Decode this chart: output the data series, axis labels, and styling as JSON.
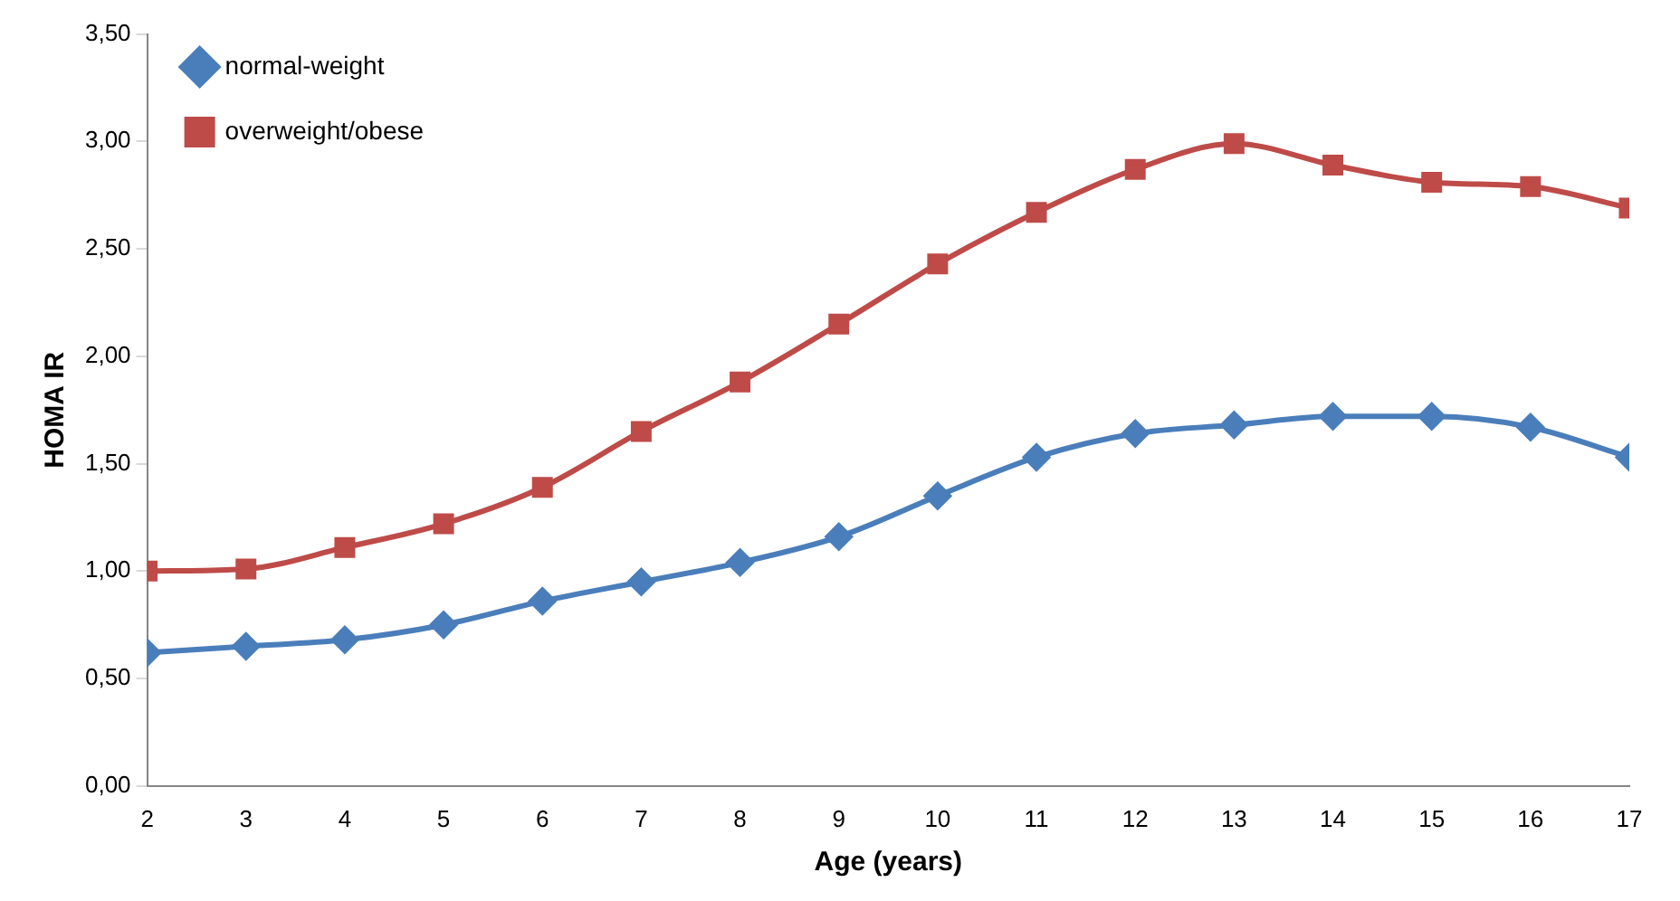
{
  "chart_data": {
    "type": "line",
    "xlabel": "Age (years)",
    "ylabel": "HOMA IR",
    "x": [
      2,
      3,
      4,
      5,
      6,
      7,
      8,
      9,
      10,
      11,
      12,
      13,
      14,
      15,
      16,
      17
    ],
    "series": [
      {
        "name": "normal-weight",
        "color": "#4a7ebb",
        "marker": "diamond",
        "values": [
          0.62,
          0.65,
          0.68,
          0.75,
          0.86,
          0.95,
          1.04,
          1.16,
          1.35,
          1.53,
          1.64,
          1.68,
          1.72,
          1.72,
          1.67,
          1.53
        ]
      },
      {
        "name": "overweight/obese",
        "color": "#be4b48",
        "marker": "square",
        "values": [
          1.0,
          1.01,
          1.11,
          1.22,
          1.39,
          1.65,
          1.88,
          2.15,
          2.43,
          2.67,
          2.87,
          2.99,
          2.89,
          2.81,
          2.79,
          2.69
        ]
      }
    ],
    "xlim": [
      2,
      17
    ],
    "xticks": [
      2,
      3,
      4,
      5,
      6,
      7,
      8,
      9,
      10,
      11,
      12,
      13,
      14,
      15,
      16,
      17
    ],
    "ylim": [
      0,
      3.5
    ],
    "yticks": [
      {
        "value": 0,
        "label": "0,00"
      },
      {
        "value": 0.5,
        "label": "0,50"
      },
      {
        "value": 1,
        "label": "1,00"
      },
      {
        "value": 1.5,
        "label": "1,50"
      },
      {
        "value": 2,
        "label": "2,00"
      },
      {
        "value": 2.5,
        "label": "2,50"
      },
      {
        "value": 3,
        "label": "3,00"
      },
      {
        "value": 3.5,
        "label": "3,50"
      }
    ],
    "grid": false,
    "legend": "top left",
    "line_style": "solid"
  }
}
